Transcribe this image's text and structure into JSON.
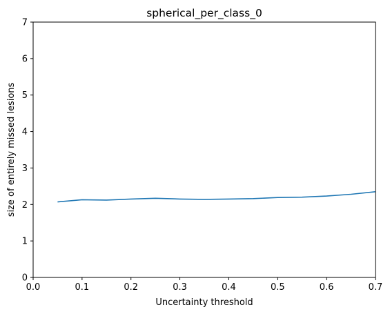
{
  "chart_data": {
    "type": "line",
    "title": "spherical_per_class_0",
    "xlabel": "Uncertainty threshold",
    "ylabel": "size of entirely missed lesions",
    "xlim": [
      0.0,
      0.7
    ],
    "ylim": [
      0,
      7
    ],
    "xticks": [
      "0.0",
      "0.1",
      "0.2",
      "0.3",
      "0.4",
      "0.5",
      "0.6",
      "0.7"
    ],
    "yticks": [
      "0",
      "1",
      "2",
      "3",
      "4",
      "5",
      "6",
      "7"
    ],
    "grid": false,
    "series": [
      {
        "color": "#1f77b4",
        "x": [
          0.05,
          0.1,
          0.15,
          0.2,
          0.25,
          0.3,
          0.35,
          0.4,
          0.45,
          0.5,
          0.55,
          0.6,
          0.65,
          0.7
        ],
        "y": [
          2.07,
          2.13,
          2.12,
          2.15,
          2.17,
          2.15,
          2.14,
          2.15,
          2.16,
          2.19,
          2.2,
          2.23,
          2.28,
          2.35
        ]
      }
    ]
  }
}
